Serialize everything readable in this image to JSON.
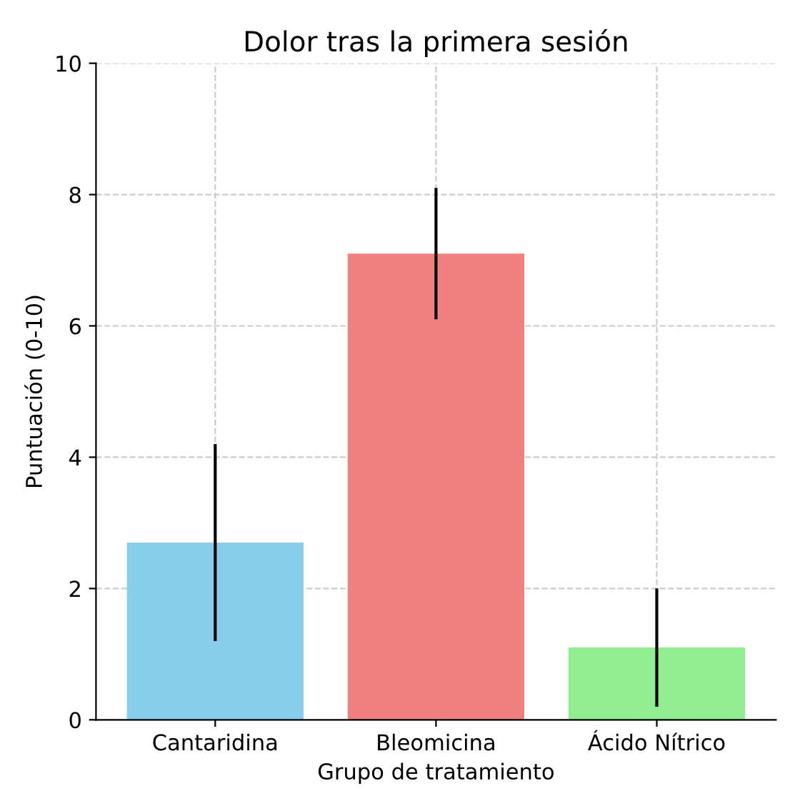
{
  "chart_data": {
    "type": "bar",
    "title": "Dolor tras la primera sesión",
    "xlabel": "Grupo de tratamiento",
    "ylabel": "Puntuación (0-10)",
    "categories": [
      "Cantaridina",
      "Bleomicina",
      "Ácido Nítrico"
    ],
    "values": [
      2.7,
      7.1,
      1.1
    ],
    "errors": [
      1.5,
      1.0,
      0.9
    ],
    "colors": [
      "#87ceeb",
      "#f08080",
      "#90ee90"
    ],
    "ylim": [
      0,
      10
    ],
    "yticks": [
      0,
      2,
      4,
      6,
      8,
      10
    ],
    "grid": true
  }
}
